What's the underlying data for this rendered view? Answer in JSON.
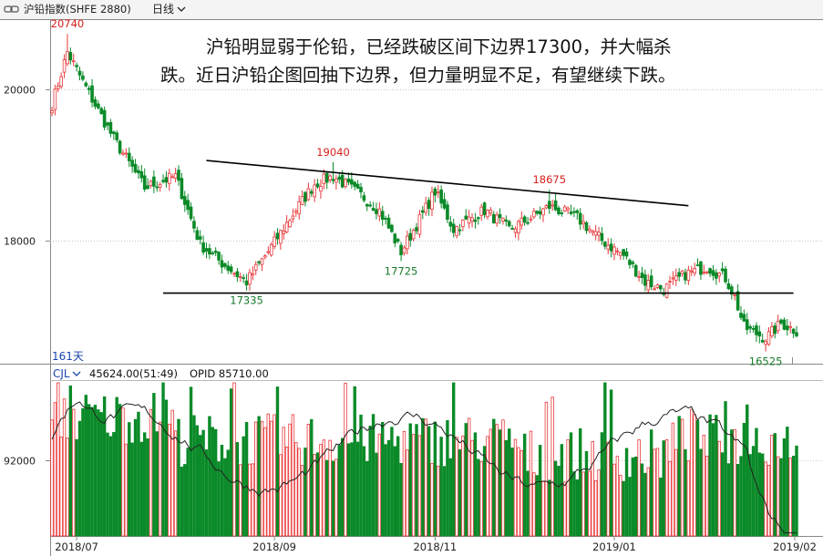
{
  "header": {
    "symbol": "沪铅指数(SHFE 2880)",
    "period": "日线"
  },
  "annotation": {
    "line1": "沪铅明显弱于伦铅，已经跌破区间下边界17300，并大幅杀",
    "line2": "跌。近日沪铅企图回抽下边界，但力量明显不足，有望继续下跌。"
  },
  "price_panel": {
    "days_label": "161天",
    "ylim": [
      16400,
      20900
    ],
    "y_ticks": [
      20000,
      18000
    ],
    "y_tick_labels": [
      "20000",
      "18000"
    ],
    "price_labels": [
      {
        "text": "20740",
        "bar": 5,
        "value": 20740,
        "kind": "high"
      },
      {
        "text": "19040",
        "bar": 91,
        "value": 19040,
        "kind": "high"
      },
      {
        "text": "18675",
        "bar": 161,
        "value": 18675,
        "kind": "high"
      },
      {
        "text": "17335",
        "bar": 63,
        "value": 17335,
        "kind": "low"
      },
      {
        "text": "17725",
        "bar": 113,
        "value": 17725,
        "kind": "low"
      },
      {
        "text": "16525",
        "bar": 231,
        "value": 16525,
        "kind": "low"
      }
    ],
    "trendlines": [
      {
        "name": "upper",
        "from": {
          "bar": 50,
          "value": 19060
        },
        "to": {
          "bar": 206,
          "value": 18460
        }
      },
      {
        "name": "lower",
        "from": {
          "bar": 36,
          "value": 17300
        },
        "to": {
          "bar": 240,
          "value": 17300
        }
      }
    ],
    "colors": {
      "up": "#e8383a",
      "down": "#0a8a28",
      "trend": "#000000",
      "high_label": "#d8201c",
      "low_label": "#1a7a2c"
    }
  },
  "volume_panel": {
    "indicator": "CJL",
    "reading": "45624.00(51:49)",
    "opid": "OPID 85710.00",
    "y_ticks": [
      92000
    ],
    "y_tick_labels": [
      "92000"
    ]
  },
  "x_axis": {
    "labels": [
      {
        "text": "2018/07",
        "bar": 8
      },
      {
        "text": "2018/09",
        "bar": 72
      },
      {
        "text": "2018/11",
        "bar": 124
      },
      {
        "text": "2019/01",
        "bar": 182
      },
      {
        "text": "2019/02",
        "bar": 241
      }
    ]
  },
  "chart_data": {
    "type": "candlestick",
    "title": "沪铅指数(SHFE 2880) 日线",
    "ylim": [
      16400,
      20900
    ],
    "y_ticks": [
      18000,
      20000
    ],
    "x_ticks": [
      "2018/07",
      "2018/09",
      "2018/11",
      "2019/01",
      "2019/02"
    ],
    "price_anchors": [
      {
        "bar": 0,
        "close": 19800
      },
      {
        "bar": 5,
        "close": 20500
      },
      {
        "bar": 12,
        "close": 19950
      },
      {
        "bar": 20,
        "close": 19350
      },
      {
        "bar": 30,
        "close": 18700
      },
      {
        "bar": 40,
        "close": 18850
      },
      {
        "bar": 48,
        "close": 17950
      },
      {
        "bar": 55,
        "close": 17700
      },
      {
        "bar": 63,
        "close": 17450
      },
      {
        "bar": 70,
        "close": 17850
      },
      {
        "bar": 78,
        "close": 18350
      },
      {
        "bar": 85,
        "close": 18750
      },
      {
        "bar": 91,
        "close": 18850
      },
      {
        "bar": 100,
        "close": 18600
      },
      {
        "bar": 106,
        "close": 18400
      },
      {
        "bar": 113,
        "close": 17850
      },
      {
        "bar": 120,
        "close": 18350
      },
      {
        "bar": 124,
        "close": 18650
      },
      {
        "bar": 130,
        "close": 18150
      },
      {
        "bar": 140,
        "close": 18400
      },
      {
        "bar": 148,
        "close": 18150
      },
      {
        "bar": 155,
        "close": 18300
      },
      {
        "bar": 161,
        "close": 18450
      },
      {
        "bar": 170,
        "close": 18300
      },
      {
        "bar": 178,
        "close": 18000
      },
      {
        "bar": 185,
        "close": 17800
      },
      {
        "bar": 192,
        "close": 17450
      },
      {
        "bar": 198,
        "close": 17350
      },
      {
        "bar": 205,
        "close": 17550
      },
      {
        "bar": 212,
        "close": 17650
      },
      {
        "bar": 218,
        "close": 17500
      },
      {
        "bar": 221,
        "close": 17250
      },
      {
        "bar": 224,
        "close": 16850
      },
      {
        "bar": 231,
        "close": 16700
      },
      {
        "bar": 236,
        "close": 16900
      },
      {
        "bar": 241,
        "close": 16800
      }
    ],
    "n_bars": 242,
    "annotated_levels": [
      20740,
      19040,
      18675,
      17725,
      17335,
      16525
    ],
    "support_level": 17300,
    "volume_reference": 92000,
    "volume_reading": 45624,
    "volume_ratio": "51:49",
    "opid": 85710
  }
}
